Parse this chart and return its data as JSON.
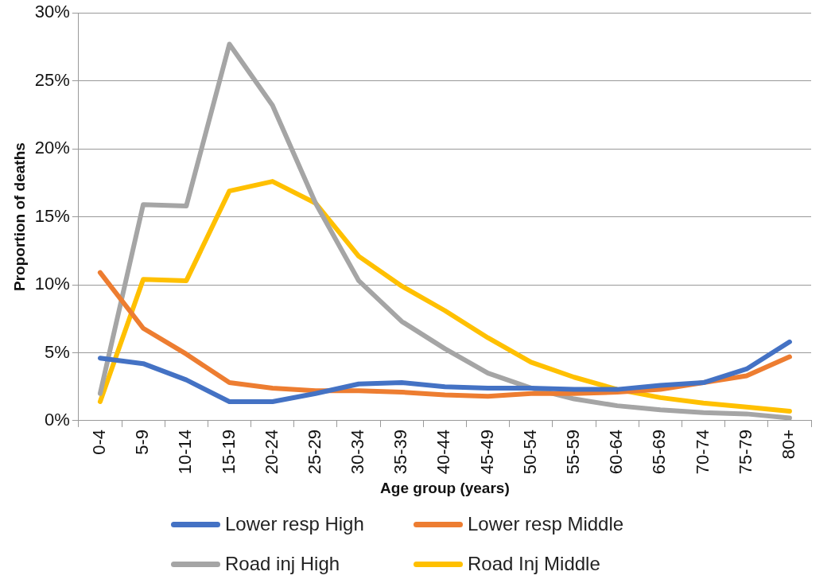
{
  "chart_data": {
    "type": "line",
    "xlabel": "Age group (years)",
    "ylabel": "Proportion of deaths",
    "categories": [
      "0-4",
      "5-9",
      "10-14",
      "15-19",
      "20-24",
      "25-29",
      "30-34",
      "35-39",
      "40-44",
      "45-49",
      "50-54",
      "55-59",
      "60-64",
      "65-69",
      "70-74",
      "75-79",
      "80+"
    ],
    "ylim": [
      0,
      30
    ],
    "yticks": [
      {
        "value": 0,
        "label": "0%"
      },
      {
        "value": 5,
        "label": "5%"
      },
      {
        "value": 10,
        "label": "10%"
      },
      {
        "value": 15,
        "label": "15%"
      },
      {
        "value": 20,
        "label": "20%"
      },
      {
        "value": 25,
        "label": "25%"
      },
      {
        "value": 30,
        "label": "30%"
      }
    ],
    "grid": "y",
    "legend": "bottom",
    "marker": "none",
    "line_style": "solid",
    "series": [
      {
        "name": "Lower resp High",
        "color": "#4472c4",
        "values": [
          4.6,
          4.2,
          3.0,
          1.4,
          1.4,
          2.0,
          2.7,
          2.8,
          2.5,
          2.4,
          2.4,
          2.3,
          2.3,
          2.6,
          2.8,
          3.8,
          5.8
        ]
      },
      {
        "name": "Lower resp Middle",
        "color": "#ed7d31",
        "values": [
          10.9,
          6.8,
          4.9,
          2.8,
          2.4,
          2.2,
          2.2,
          2.1,
          1.9,
          1.8,
          2.0,
          2.0,
          2.1,
          2.3,
          2.8,
          3.3,
          4.7
        ]
      },
      {
        "name": "Road inj High",
        "color": "#a5a5a5",
        "values": [
          2.0,
          15.9,
          15.8,
          27.7,
          23.2,
          16.0,
          10.3,
          7.3,
          5.3,
          3.5,
          2.4,
          1.6,
          1.1,
          0.8,
          0.6,
          0.5,
          0.2
        ]
      },
      {
        "name": "Road Inj Middle",
        "color": "#ffc000",
        "values": [
          1.4,
          10.4,
          10.3,
          16.9,
          17.6,
          16.0,
          12.1,
          9.9,
          8.1,
          6.1,
          4.3,
          3.2,
          2.3,
          1.7,
          1.3,
          1.0,
          0.7
        ]
      }
    ]
  }
}
